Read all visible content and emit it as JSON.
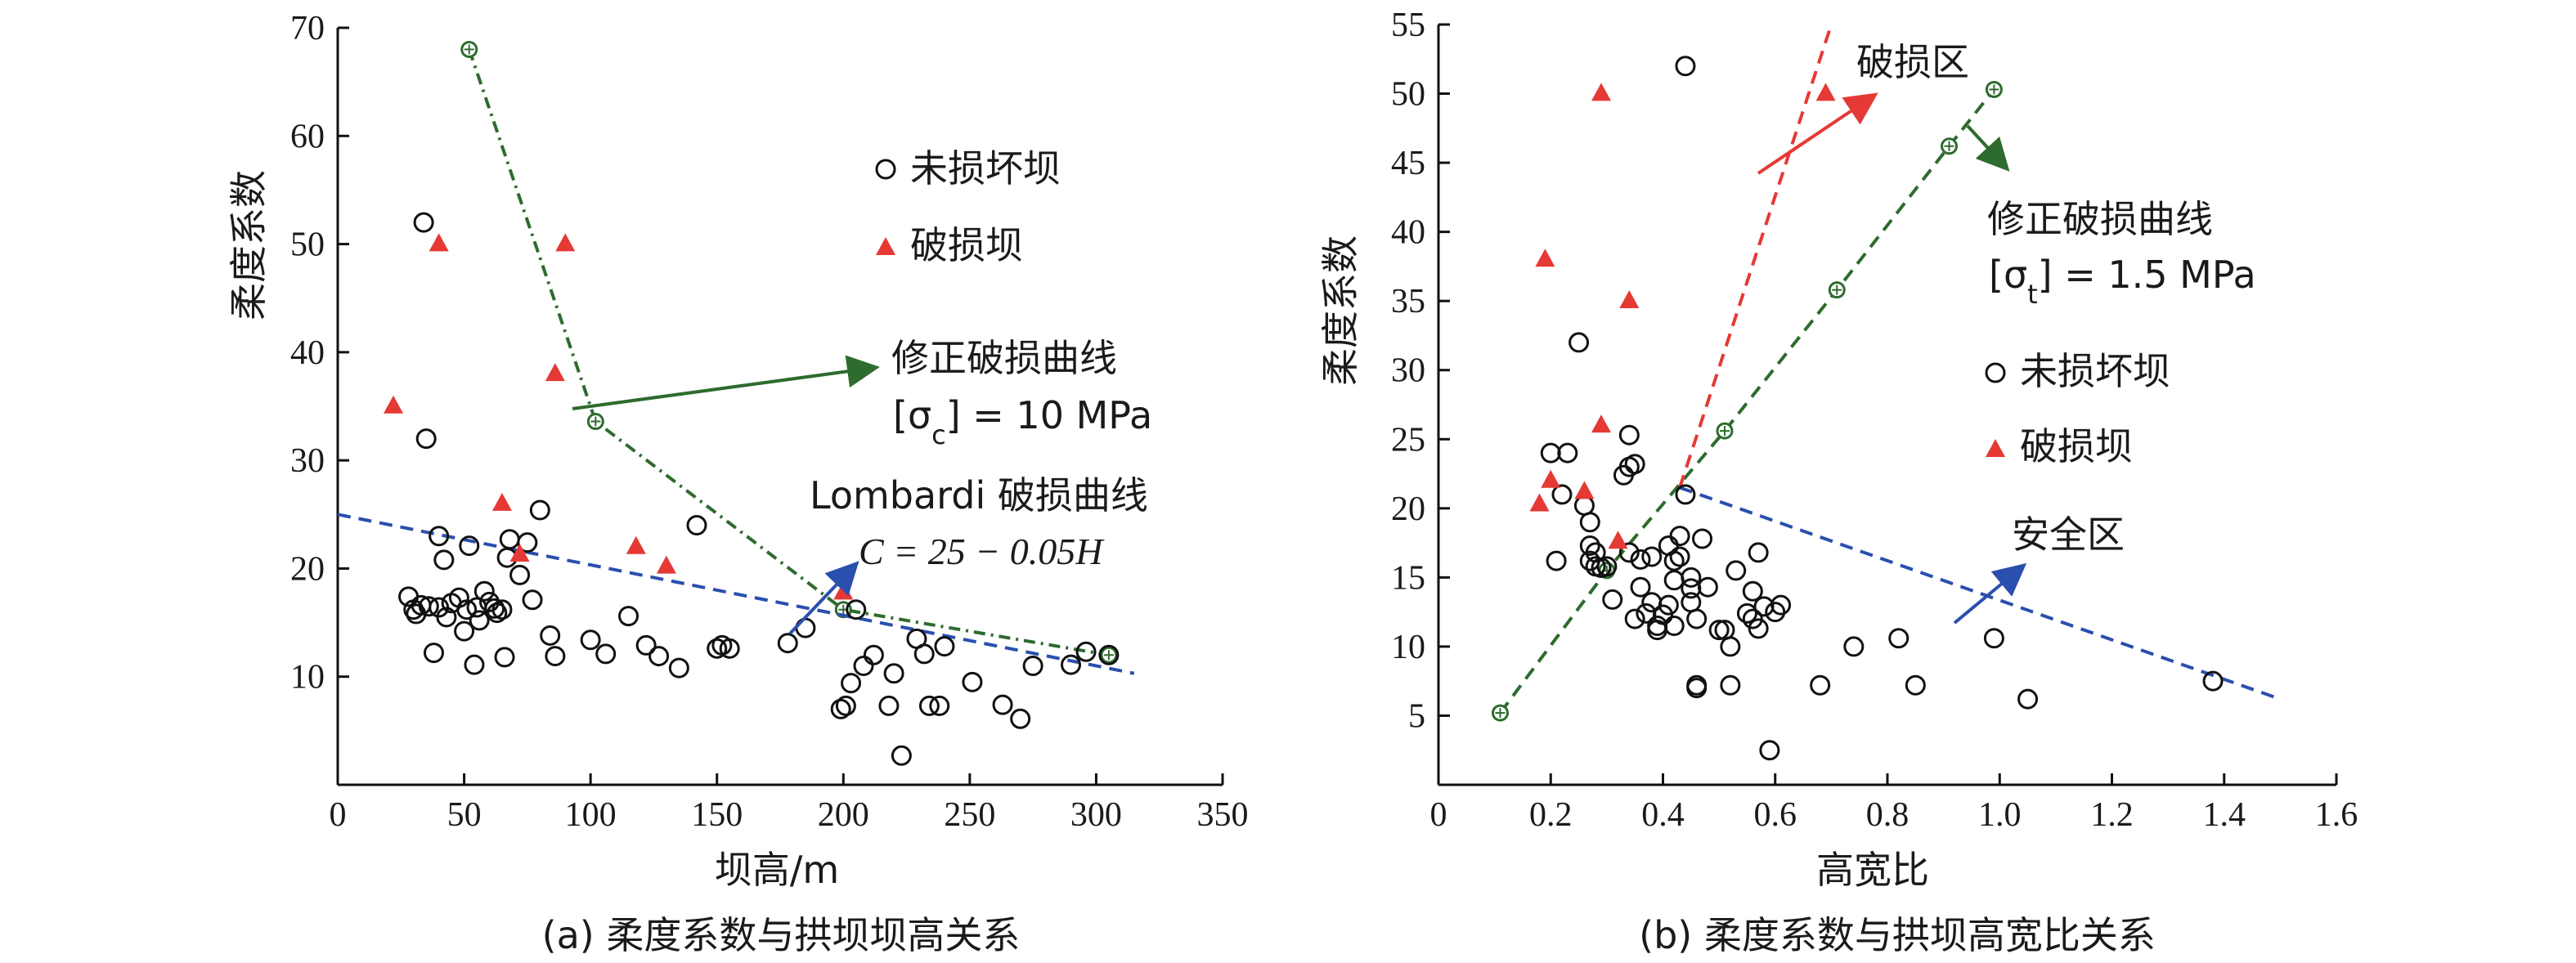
{
  "chart_data": [
    {
      "type": "scatter",
      "caption": "(a) 柔度系数与拱坝坝高关系",
      "xlabel": "坝高/m",
      "ylabel": "柔度系数",
      "xlim": [
        0,
        350
      ],
      "ylim": [
        0,
        70
      ],
      "xticks": [
        0,
        50,
        100,
        150,
        200,
        250,
        300,
        350
      ],
      "yticks": [
        10,
        20,
        30,
        40,
        50,
        60,
        70
      ],
      "legend": {
        "undamaged": "未损坏坝",
        "damaged": "破损坝",
        "placement": "top-right"
      },
      "series": [
        {
          "name": "未损坏坝",
          "marker": "circle",
          "points": [
            [
              28,
              17.4
            ],
            [
              30,
              16.2
            ],
            [
              31,
              15.8
            ],
            [
              33,
              16.6
            ],
            [
              34,
              52
            ],
            [
              35,
              32
            ],
            [
              36,
              16.5
            ],
            [
              38,
              12.2
            ],
            [
              40,
              23
            ],
            [
              40,
              16.4
            ],
            [
              42,
              20.8
            ],
            [
              43,
              15.5
            ],
            [
              45,
              16.8
            ],
            [
              48,
              17.3
            ],
            [
              50,
              14.2
            ],
            [
              51,
              16.2
            ],
            [
              52,
              22.1
            ],
            [
              54,
              11.1
            ],
            [
              55,
              16.4
            ],
            [
              56,
              15.2
            ],
            [
              58,
              17.9
            ],
            [
              60,
              16.9
            ],
            [
              62,
              16.3
            ],
            [
              63,
              15.9
            ],
            [
              65,
              16.2
            ],
            [
              66,
              11.8
            ],
            [
              67,
              21
            ],
            [
              68,
              22.7
            ],
            [
              72,
              19.4
            ],
            [
              75,
              22.4
            ],
            [
              77,
              17.1
            ],
            [
              80,
              25.4
            ],
            [
              84,
              13.8
            ],
            [
              86,
              11.9
            ],
            [
              100,
              13.4
            ],
            [
              106,
              12.1
            ],
            [
              115,
              15.6
            ],
            [
              122,
              12.9
            ],
            [
              127,
              11.9
            ],
            [
              135,
              10.8
            ],
            [
              142,
              24
            ],
            [
              150,
              12.6
            ],
            [
              152,
              12.9
            ],
            [
              155,
              12.6
            ],
            [
              178,
              13.1
            ],
            [
              185,
              14.5
            ],
            [
              199,
              7
            ],
            [
              201,
              7.3
            ],
            [
              203,
              9.4
            ],
            [
              205,
              16.2
            ],
            [
              208,
              11
            ],
            [
              212,
              12
            ],
            [
              218,
              7.3
            ],
            [
              220,
              10.3
            ],
            [
              223,
              2.7
            ],
            [
              229,
              13.5
            ],
            [
              232,
              12.1
            ],
            [
              234,
              7.3
            ],
            [
              238,
              7.3
            ],
            [
              240,
              12.8
            ],
            [
              251,
              9.5
            ],
            [
              263,
              7.4
            ],
            [
              270,
              6.1
            ],
            [
              275,
              11
            ],
            [
              290,
              11.1
            ],
            [
              296,
              12.3
            ],
            [
              305,
              12
            ]
          ]
        },
        {
          "name": "破损坝",
          "marker": "triangle",
          "points": [
            [
              22,
              35
            ],
            [
              40,
              50
            ],
            [
              65,
              26
            ],
            [
              72,
              21.3
            ],
            [
              86,
              38
            ],
            [
              90,
              50
            ],
            [
              118,
              22
            ],
            [
              130,
              20.2
            ],
            [
              200,
              17.8
            ]
          ]
        }
      ],
      "lines": [
        {
          "name": "修正破损曲线",
          "style": "dash-dot",
          "color": "#2e6b2e",
          "points": [
            [
              52,
              68
            ],
            [
              102,
              33.6
            ],
            [
              200,
              16.2
            ],
            [
              305,
              12
            ]
          ]
        },
        {
          "name": "Lombardi 破损曲线",
          "style": "dashed",
          "color": "#2a4fae",
          "points": [
            [
              0,
              25
            ],
            [
              315,
              10.3
            ]
          ]
        }
      ],
      "annotations": {
        "modified_curve": "修正破损曲线",
        "modified_param_prefix": "[σ",
        "modified_param_sub": "c",
        "modified_param_suffix": "] = 10 MPa",
        "lombardi_curve": "Lombardi 破损曲线",
        "lombardi_formula": "C = 25 − 0.05H"
      }
    },
    {
      "type": "scatter",
      "caption": "(b) 柔度系数与拱坝高宽比关系",
      "xlabel": "高宽比",
      "ylabel": "柔度系数",
      "xlim": [
        0,
        1.6
      ],
      "ylim": [
        0,
        55
      ],
      "xticks": [
        "0",
        "0.2",
        "0.4",
        "0.6",
        "0.8",
        "1.0",
        "1.2",
        "1.4",
        "1.6"
      ],
      "yticks": [
        5,
        10,
        15,
        20,
        25,
        30,
        35,
        40,
        45,
        50,
        55
      ],
      "legend": {
        "undamaged": "未损坏坝",
        "damaged": "破损坝",
        "placement": "right"
      },
      "series": [
        {
          "name": "未损坏坝",
          "marker": "circle",
          "points": [
            [
              0.2,
              24
            ],
            [
              0.21,
              16.2
            ],
            [
              0.22,
              21
            ],
            [
              0.23,
              24
            ],
            [
              0.25,
              32
            ],
            [
              0.26,
              20.2
            ],
            [
              0.27,
              19
            ],
            [
              0.27,
              17.3
            ],
            [
              0.27,
              16.2
            ],
            [
              0.28,
              16.8
            ],
            [
              0.28,
              15.8
            ],
            [
              0.29,
              15.7
            ],
            [
              0.3,
              15.8
            ],
            [
              0.31,
              13.4
            ],
            [
              0.33,
              22.4
            ],
            [
              0.34,
              25.3
            ],
            [
              0.34,
              23
            ],
            [
              0.35,
              23.2
            ],
            [
              0.34,
              16.8
            ],
            [
              0.35,
              12
            ],
            [
              0.36,
              14.3
            ],
            [
              0.36,
              16.3
            ],
            [
              0.37,
              12.4
            ],
            [
              0.38,
              16.5
            ],
            [
              0.38,
              13.2
            ],
            [
              0.39,
              11.5
            ],
            [
              0.39,
              11.2
            ],
            [
              0.4,
              12.3
            ],
            [
              0.41,
              17.3
            ],
            [
              0.41,
              13
            ],
            [
              0.42,
              16.2
            ],
            [
              0.42,
              14.8
            ],
            [
              0.42,
              11.5
            ],
            [
              0.43,
              18
            ],
            [
              0.43,
              16.5
            ],
            [
              0.44,
              52
            ],
            [
              0.44,
              21
            ],
            [
              0.45,
              15
            ],
            [
              0.45,
              14.2
            ],
            [
              0.45,
              13.2
            ],
            [
              0.46,
              7.2
            ],
            [
              0.46,
              7
            ],
            [
              0.46,
              12
            ],
            [
              0.47,
              17.8
            ],
            [
              0.48,
              14.3
            ],
            [
              0.5,
              11.2
            ],
            [
              0.51,
              11.2
            ],
            [
              0.52,
              10
            ],
            [
              0.52,
              7.2
            ],
            [
              0.53,
              15.5
            ],
            [
              0.55,
              12.4
            ],
            [
              0.56,
              12
            ],
            [
              0.56,
              14
            ],
            [
              0.57,
              11.3
            ],
            [
              0.57,
              16.8
            ],
            [
              0.58,
              12.9
            ],
            [
              0.59,
              2.5
            ],
            [
              0.6,
              12.5
            ],
            [
              0.61,
              13
            ],
            [
              0.68,
              7.2
            ],
            [
              0.74,
              10
            ],
            [
              0.82,
              10.6
            ],
            [
              0.85,
              7.2
            ],
            [
              0.99,
              10.6
            ],
            [
              1.05,
              6.2
            ],
            [
              1.38,
              7.5
            ]
          ]
        },
        {
          "name": "破损坝",
          "marker": "triangle",
          "points": [
            [
              0.18,
              20.3
            ],
            [
              0.19,
              38
            ],
            [
              0.2,
              22
            ],
            [
              0.26,
              21.2
            ],
            [
              0.29,
              50
            ],
            [
              0.29,
              26
            ],
            [
              0.32,
              17.6
            ],
            [
              0.34,
              35
            ],
            [
              0.69,
              50
            ]
          ]
        }
      ],
      "lines": [
        {
          "name": "修正破损曲线",
          "style": "dashed",
          "color": "#2e6b2e",
          "points": [
            [
              0.11,
              5.2
            ],
            [
              0.3,
              15.5
            ],
            [
              0.51,
              25.6
            ],
            [
              0.71,
              35.8
            ],
            [
              0.91,
              46.2
            ],
            [
              0.99,
              50.3
            ]
          ]
        },
        {
          "name": "Lombardi 破损曲线",
          "style": "dashed",
          "color": "#2a4fae",
          "points": [
            [
              0.43,
              21.5
            ],
            [
              1.5,
              6.2
            ]
          ]
        },
        {
          "name": "破损区边界",
          "style": "dashed",
          "color": "#e53935",
          "points": [
            [
              0.43,
              21.5
            ],
            [
              0.7,
              55
            ]
          ]
        }
      ],
      "annotations": {
        "damage_zone": "破损区",
        "safe_zone": "安全区",
        "modified_curve": "修正破损曲线",
        "modified_param_prefix": "[σ",
        "modified_param_sub": "t",
        "modified_param_suffix": "] = 1.5 MPa"
      }
    }
  ]
}
